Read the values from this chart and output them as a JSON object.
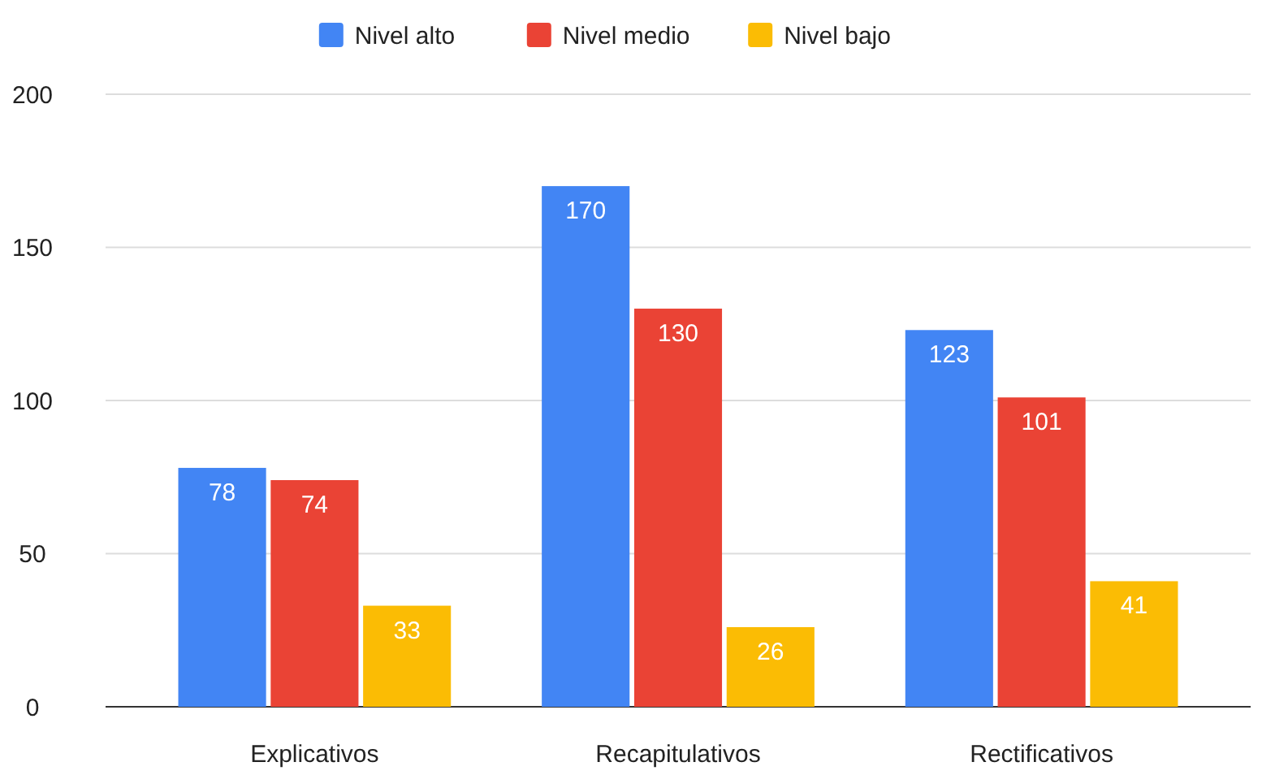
{
  "chart_data": {
    "type": "bar",
    "categories": [
      "Explicativos",
      "Recapitulativos",
      "Rectificativos"
    ],
    "series": [
      {
        "name": "Nivel alto",
        "color": "#4285f4",
        "values": [
          78,
          170,
          123
        ]
      },
      {
        "name": "Nivel medio",
        "color": "#ea4335",
        "values": [
          74,
          130,
          101
        ]
      },
      {
        "name": "Nivel bajo",
        "color": "#fbbc04",
        "values": [
          33,
          26,
          41
        ]
      }
    ],
    "ylim": [
      0,
      200
    ],
    "yticks": [
      0,
      50,
      100,
      150,
      200
    ],
    "grid": "y",
    "legend": "top",
    "data_labels": true
  }
}
